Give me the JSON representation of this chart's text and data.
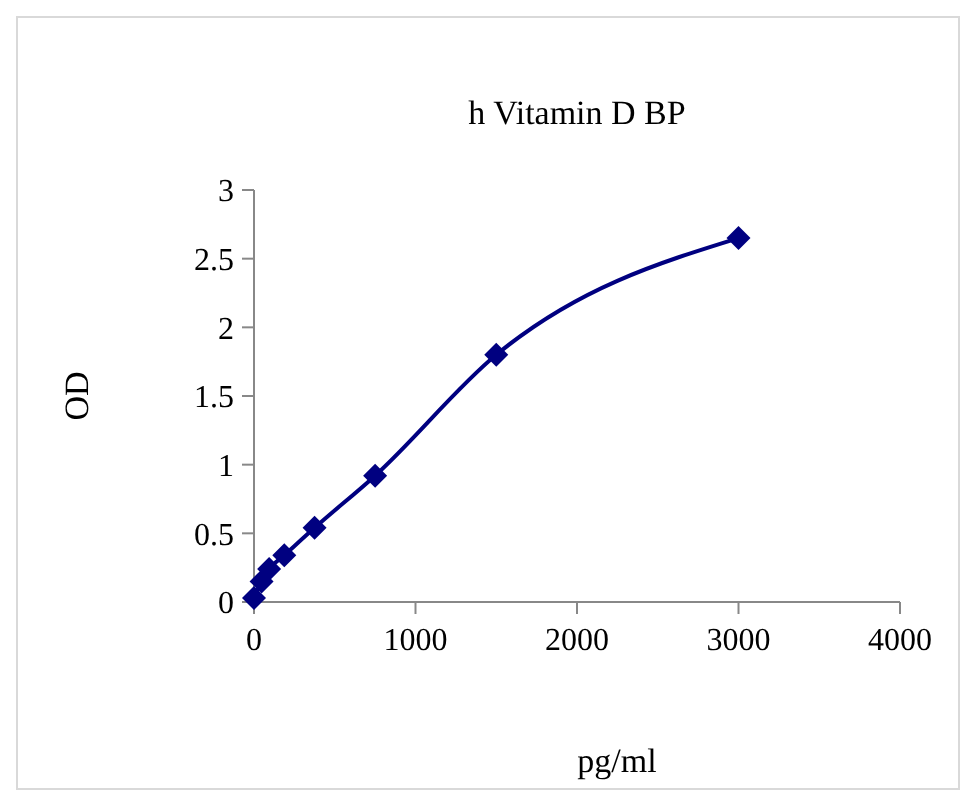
{
  "chart_data": {
    "type": "line",
    "title": "h Vitamin D BP",
    "xlabel": "pg/ml",
    "ylabel": "OD",
    "x": [
      0,
      46.875,
      93.75,
      187.5,
      375,
      750,
      1500,
      3000
    ],
    "series": [
      {
        "color": "#000080",
        "values": [
          0.03,
          0.15,
          0.24,
          0.34,
          0.54,
          0.92,
          1.8,
          2.65
        ]
      }
    ],
    "xlim": [
      0,
      4000
    ],
    "xticks": [
      0,
      1000,
      2000,
      3000,
      4000
    ],
    "ylim": [
      0,
      3
    ],
    "yticks": [
      0,
      0.5,
      1,
      1.5,
      2,
      2.5,
      3
    ],
    "grid": false,
    "marker": "diamond",
    "line_style": "solid"
  }
}
